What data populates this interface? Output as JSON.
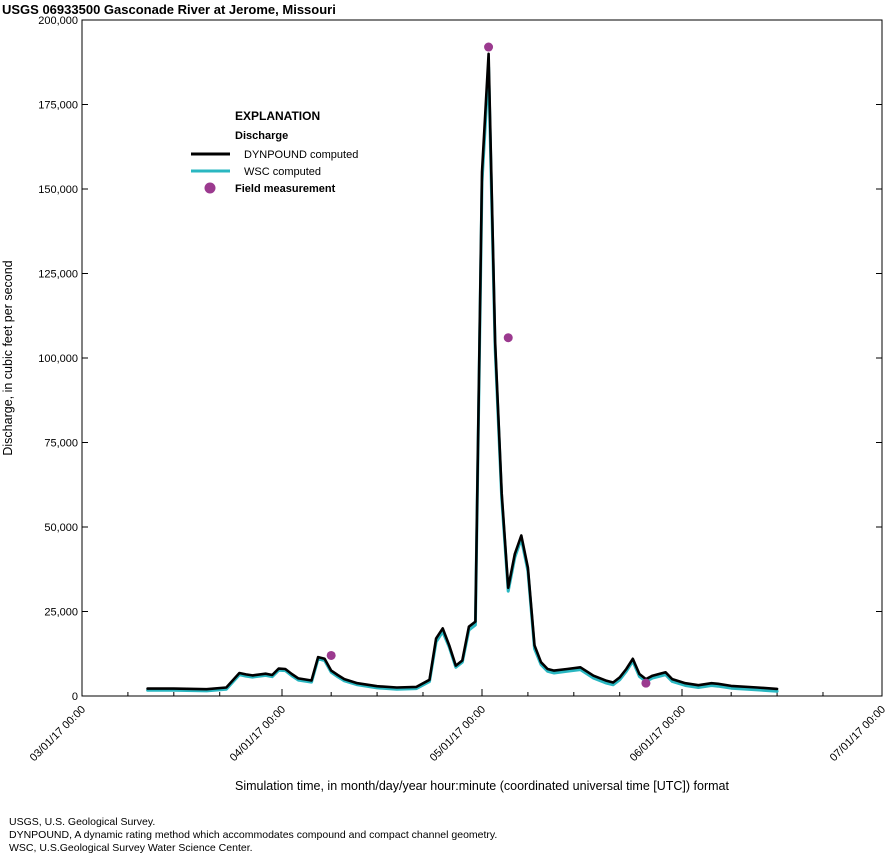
{
  "chart_data": {
    "type": "line",
    "title": "USGS 06933500 Gasconade River at Jerome, Missouri",
    "xlabel": "Simulation time, in month/day/year hour:minute (coordinated universal time [UTC]) format",
    "ylabel": "Discharge, in cubic feet per second",
    "xlim": [
      "2017-03-01",
      "2017-07-01"
    ],
    "ylim": [
      0,
      200000
    ],
    "x_ticks": [
      "03/01/17 00:00",
      "04/01/17 00:00",
      "05/01/17 00:00",
      "06/01/17 00:00",
      "07/01/17 00:00"
    ],
    "y_ticks": [
      "0",
      "25,000",
      "50,000",
      "75,000",
      "100,000",
      "125,000",
      "150,000",
      "175,000",
      "200,000"
    ],
    "legend": {
      "heading": "EXPLANATION",
      "subheading": "Discharge",
      "position": "upper-left"
    },
    "series": [
      {
        "name": "DYNPOUND computed",
        "color": "#000000",
        "x": [
          "2017-03-11",
          "2017-03-15",
          "2017-03-20",
          "2017-03-23",
          "2017-03-25",
          "2017-03-26",
          "2017-03-27",
          "2017-03-29",
          "2017-03-30",
          "2017-03-31",
          "2017-04-01",
          "2017-04-02",
          "2017-04-03",
          "2017-04-05",
          "2017-04-06",
          "2017-04-07",
          "2017-04-08",
          "2017-04-09",
          "2017-04-10",
          "2017-04-12",
          "2017-04-15",
          "2017-04-18",
          "2017-04-21",
          "2017-04-23",
          "2017-04-24",
          "2017-04-25",
          "2017-04-26",
          "2017-04-27",
          "2017-04-28",
          "2017-04-29",
          "2017-04-30",
          "2017-05-01",
          "2017-05-02",
          "2017-05-03",
          "2017-05-04",
          "2017-05-05",
          "2017-05-06",
          "2017-05-07",
          "2017-05-08",
          "2017-05-09",
          "2017-05-10",
          "2017-05-11",
          "2017-05-12",
          "2017-05-14",
          "2017-05-16",
          "2017-05-18",
          "2017-05-20",
          "2017-05-21",
          "2017-05-22",
          "2017-05-23",
          "2017-05-24",
          "2017-05-25",
          "2017-05-26",
          "2017-05-27",
          "2017-05-28",
          "2017-05-29",
          "2017-05-30",
          "2017-06-01",
          "2017-06-03",
          "2017-06-05",
          "2017-06-06",
          "2017-06-08",
          "2017-06-12",
          "2017-06-15"
        ],
        "values": [
          2200,
          2200,
          2000,
          2500,
          6800,
          6400,
          6100,
          6600,
          6200,
          8100,
          8000,
          6500,
          5200,
          4600,
          11500,
          11000,
          7500,
          6200,
          5000,
          3800,
          2900,
          2500,
          2700,
          4800,
          17000,
          20000,
          15000,
          9000,
          10500,
          20500,
          22000,
          155000,
          190000,
          105000,
          60000,
          32000,
          42000,
          47500,
          38000,
          15000,
          10000,
          8000,
          7500,
          8000,
          8500,
          6000,
          4500,
          4000,
          5500,
          8000,
          11000,
          6500,
          5000,
          6000,
          6500,
          7000,
          5000,
          3800,
          3200,
          3800,
          3600,
          3000,
          2500,
          2100
        ]
      },
      {
        "name": "WSC computed",
        "color": "#2ab7c1",
        "x": [
          "2017-03-11",
          "2017-03-15",
          "2017-03-20",
          "2017-03-23",
          "2017-03-25",
          "2017-03-26",
          "2017-03-27",
          "2017-03-29",
          "2017-03-30",
          "2017-03-31",
          "2017-04-01",
          "2017-04-02",
          "2017-04-03",
          "2017-04-05",
          "2017-04-06",
          "2017-04-07",
          "2017-04-08",
          "2017-04-09",
          "2017-04-10",
          "2017-04-12",
          "2017-04-15",
          "2017-04-18",
          "2017-04-21",
          "2017-04-23",
          "2017-04-24",
          "2017-04-25",
          "2017-04-26",
          "2017-04-27",
          "2017-04-28",
          "2017-04-29",
          "2017-04-30",
          "2017-05-01",
          "2017-05-02",
          "2017-05-03",
          "2017-05-04",
          "2017-05-05",
          "2017-05-06",
          "2017-05-07",
          "2017-05-08",
          "2017-05-09",
          "2017-05-10",
          "2017-05-11",
          "2017-05-12",
          "2017-05-14",
          "2017-05-16",
          "2017-05-18",
          "2017-05-20",
          "2017-05-21",
          "2017-05-22",
          "2017-05-23",
          "2017-05-24",
          "2017-05-25",
          "2017-05-26",
          "2017-05-27",
          "2017-05-28",
          "2017-05-29",
          "2017-05-30",
          "2017-06-01",
          "2017-06-03",
          "2017-06-05",
          "2017-06-06",
          "2017-06-08",
          "2017-06-12",
          "2017-06-15"
        ],
        "values": [
          1700,
          1700,
          1500,
          2000,
          6300,
          5900,
          5600,
          6100,
          5700,
          7600,
          7500,
          6000,
          4700,
          4100,
          11000,
          10500,
          7000,
          5700,
          4500,
          3300,
          2400,
          2000,
          2200,
          4300,
          16000,
          19000,
          14500,
          8500,
          10000,
          19500,
          21000,
          152000,
          186000,
          103000,
          58500,
          31000,
          41000,
          46500,
          37000,
          14000,
          9300,
          7300,
          6800,
          7300,
          7800,
          5300,
          3800,
          3300,
          4800,
          7300,
          10300,
          5800,
          4300,
          5300,
          5800,
          6300,
          4300,
          3100,
          2500,
          3100,
          2900,
          2300,
          1800,
          1400
        ]
      },
      {
        "name": "Field measurement",
        "color": "#9b3a8f",
        "marker": "circle",
        "x": [
          "2017-04-08",
          "2017-05-02",
          "2017-05-05",
          "2017-05-26"
        ],
        "values": [
          12000,
          192000,
          106000,
          3800
        ]
      }
    ]
  },
  "footnotes": [
    "USGS, U.S. Geological Survey.",
    "DYNPOUND, A dynamic rating method which accommodates compound and compact channel geometry.",
    "WSC, U.S.Geological Survey Water Science Center."
  ]
}
